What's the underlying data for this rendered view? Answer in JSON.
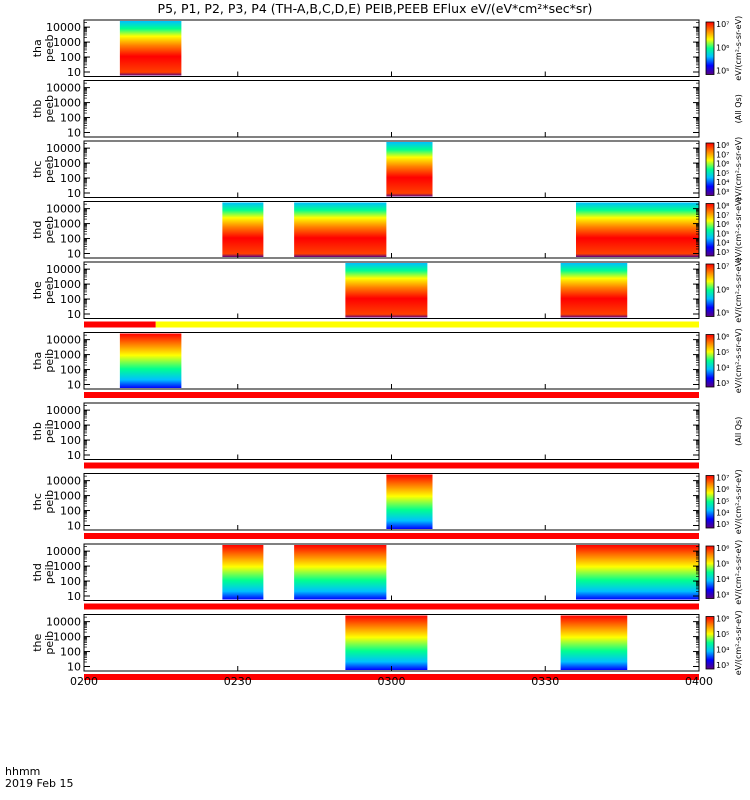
{
  "title": "P5, P1, P2, P3, P4 (TH-A,B,C,D,E) PEIB,PEEB EFlux eV/(eV*cm²*sec*sr)",
  "footer": {
    "line1": "hhmm",
    "line2": "2019 Feb 15"
  },
  "x_ticks": [
    "0200",
    "0230",
    "0300",
    "0330",
    "0400"
  ],
  "y_ticks": [
    "10",
    "100",
    "1000",
    "10000"
  ],
  "colorscale": [
    "#5a0080",
    "#0000ff",
    "#00c0ff",
    "#00ff90",
    "#ffff00",
    "#ff8000",
    "#ff0000"
  ],
  "chart_data": {
    "type": "heatmap",
    "title": "P5, P1, P2, P3, P4 (TH-A,B,C,D,E) PEIB,PEEB EFlux eV/(eV*cm²*sec*sr)",
    "x_unit": "UT hhmm, 2019 Feb 15",
    "xlim": [
      "0200",
      "0400"
    ],
    "y_scale": "log",
    "ylim": [
      5,
      30000
    ],
    "panels": [
      {
        "label": [
          "tha",
          "peeb"
        ],
        "intervals": [
          [
            "0207",
            "0219"
          ]
        ],
        "cb_ticks": [
          "10⁵",
          "10⁶",
          "10⁷"
        ],
        "cb_label": "eV/(cm²-s-sr-eV)"
      },
      {
        "label": [
          "thb",
          "peeb"
        ],
        "intervals": [],
        "cb_ticks": [],
        "cb_label": "(All Qs)"
      },
      {
        "label": [
          "thc",
          "peeb"
        ],
        "intervals": [
          [
            "0259",
            "0308"
          ]
        ],
        "cb_ticks": [
          "10³",
          "10⁴",
          "10⁵",
          "10⁶",
          "10⁷",
          "10⁸"
        ],
        "cb_label": "eV/(cm²-s-sr-eV)"
      },
      {
        "label": [
          "thd",
          "peeb"
        ],
        "intervals": [
          [
            "0227",
            "0235"
          ],
          [
            "0241",
            "0259"
          ],
          [
            "0336",
            "0400"
          ]
        ],
        "cb_ticks": [
          "10³",
          "10⁴",
          "10⁵",
          "10⁶",
          "10⁷",
          "10⁸"
        ],
        "cb_label": "eV/(cm²-s-sr-eV)"
      },
      {
        "label": [
          "the",
          "peeb"
        ],
        "intervals": [
          [
            "0251",
            "0307"
          ],
          [
            "0333",
            "0346"
          ]
        ],
        "cb_ticks": [
          "10⁵",
          "10⁶",
          "10⁷"
        ],
        "cb_label": "eV/(cm²-s-sr-eV)"
      },
      {
        "label": [
          "tha",
          "peib"
        ],
        "intervals": [
          [
            "0207",
            "0219"
          ]
        ],
        "cb_ticks": [
          "10³",
          "10⁴",
          "10⁵",
          "10⁶"
        ],
        "cb_label": "eV/(cm²-s-sr-eV)"
      },
      {
        "label": [
          "thb",
          "peib"
        ],
        "intervals": [],
        "cb_ticks": [],
        "cb_label": "(All Qs)"
      },
      {
        "label": [
          "thc",
          "peib"
        ],
        "intervals": [
          [
            "0259",
            "0308"
          ]
        ],
        "cb_ticks": [
          "10³",
          "10⁴",
          "10⁵",
          "10⁶",
          "10⁷"
        ],
        "cb_label": "eV/(cm²-s-sr-eV)"
      },
      {
        "label": [
          "thd",
          "peib"
        ],
        "intervals": [
          [
            "0227",
            "0235"
          ],
          [
            "0241",
            "0259"
          ],
          [
            "0336",
            "0400"
          ]
        ],
        "cb_ticks": [
          "10³",
          "10⁴",
          "10⁵",
          "10⁶"
        ],
        "cb_label": "eV/(cm²-s-sr-eV)"
      },
      {
        "label": [
          "the",
          "peib"
        ],
        "intervals": [
          [
            "0251",
            "0307"
          ],
          [
            "0333",
            "0346"
          ]
        ],
        "cb_ticks": [
          "10³",
          "10⁴",
          "10⁵",
          "10⁶"
        ],
        "cb_label": "eV/(cm²-s-sr-eV)"
      }
    ],
    "status_bars": [
      {
        "after_panel": 5,
        "segments": [
          {
            "from": "0200",
            "to": "0214",
            "color": "#ff0000"
          },
          {
            "from": "0214",
            "to": "0400",
            "color": "#ffff00"
          }
        ]
      },
      {
        "after_panel": 6,
        "segments": [
          {
            "from": "0200",
            "to": "0400",
            "color": "#ff0000"
          }
        ]
      },
      {
        "after_panel": 7,
        "segments": [
          {
            "from": "0200",
            "to": "0400",
            "color": "#ff0000"
          }
        ]
      },
      {
        "after_panel": 8,
        "segments": [
          {
            "from": "0200",
            "to": "0400",
            "color": "#ff0000"
          }
        ]
      },
      {
        "after_panel": 9,
        "segments": [
          {
            "from": "0200",
            "to": "0400",
            "color": "#ff0000"
          }
        ]
      },
      {
        "after_panel": 10,
        "segments": [
          {
            "from": "0200",
            "to": "0400",
            "color": "#ff0000"
          }
        ]
      }
    ]
  }
}
